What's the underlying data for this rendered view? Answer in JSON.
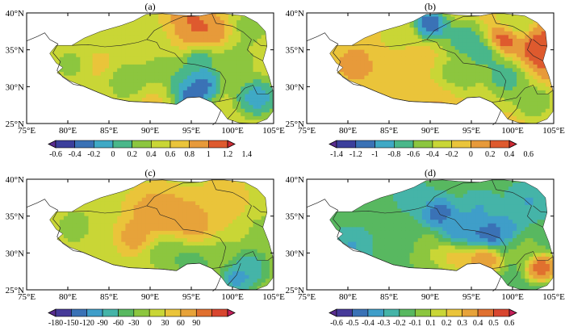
{
  "colors": {
    "ramp_11": [
      "#5a2d90",
      "#3b3f9c",
      "#3a72b6",
      "#3fa9c5",
      "#49b78a",
      "#8cc63f",
      "#c9d636",
      "#eac43a",
      "#e79a3a",
      "#de5a2e",
      "#cf2b34"
    ],
    "ramp_13": [
      "#5a2d90",
      "#463a99",
      "#3a72b6",
      "#3f9ec9",
      "#45b4a8",
      "#58b860",
      "#8cc63f",
      "#c9d636",
      "#eac43a",
      "#e7a33a",
      "#e0702f",
      "#d8462f",
      "#c71f5a"
    ],
    "land_blank": "#ffffff",
    "border": "#222222"
  },
  "panels": [
    {
      "label": "(a)",
      "lat_ticks": [
        "40°N",
        "35°N",
        "30°N",
        "25°N"
      ],
      "lon_ticks": [
        "75°E",
        "80°E",
        "85°E",
        "90°E",
        "95°E",
        "100°E",
        "105°E"
      ],
      "colorbar_ticks": [
        "-0.6",
        "-0.4",
        "-0.2",
        "0",
        "0.2",
        "0.4",
        "0.6",
        "0.8",
        "1",
        "1.2",
        "1.4"
      ],
      "base_level": 6,
      "blobs": [
        [
          94,
          38.5,
          2.8,
          10
        ],
        [
          97.5,
          37.5,
          1.8,
          9
        ],
        [
          91,
          37.2,
          3.0,
          5
        ],
        [
          84,
          33.0,
          1.6,
          7
        ],
        [
          80.5,
          33.0,
          1.4,
          5
        ],
        [
          88,
          31.5,
          2.2,
          4
        ],
        [
          93,
          30.5,
          2.6,
          4
        ],
        [
          94.5,
          28.8,
          1.8,
          0
        ],
        [
          96.5,
          30.5,
          1.6,
          1
        ],
        [
          91,
          28.5,
          2.0,
          8
        ],
        [
          100,
          33.5,
          2.2,
          5
        ],
        [
          102,
          38.0,
          1.8,
          5
        ],
        [
          103,
          28.5,
          1.8,
          2
        ],
        [
          96.0,
          33.5,
          1.6,
          3
        ],
        [
          88,
          34.5,
          1.8,
          7
        ]
      ]
    },
    {
      "label": "(b)",
      "lat_ticks": [
        "40°N",
        "35°N",
        "30°N",
        "25°N"
      ],
      "lon_ticks": [
        "75°E",
        "80°E",
        "85°E",
        "90°E",
        "95°E",
        "100°E",
        "105°E"
      ],
      "colorbar_ticks": [
        "-1.4",
        "-1.2",
        "-1",
        "-0.8",
        "-0.6",
        "-0.4",
        "-0.2",
        "0",
        "0.2",
        "0.4",
        "0.6"
      ],
      "base_level": 7,
      "blobs": [
        [
          104,
          35.0,
          2.6,
          10
        ],
        [
          99,
          36.5,
          1.5,
          10
        ],
        [
          94,
          36.5,
          2.0,
          3
        ],
        [
          96.5,
          34.5,
          1.6,
          3
        ],
        [
          90,
          38.5,
          1.6,
          0
        ],
        [
          86,
          37.0,
          2.0,
          6
        ],
        [
          81,
          33.0,
          1.8,
          8
        ],
        [
          88,
          31.5,
          2.2,
          7
        ],
        [
          93,
          31.0,
          2.2,
          4
        ],
        [
          99,
          31.0,
          2.2,
          3
        ],
        [
          97,
          28.5,
          1.8,
          6
        ],
        [
          102.5,
          28.0,
          1.8,
          4
        ],
        [
          91.5,
          28.6,
          2.0,
          8
        ],
        [
          100.5,
          38.5,
          1.8,
          5
        ]
      ]
    },
    {
      "label": "(c)",
      "lat_ticks": [
        "40°N",
        "35°N",
        "30°N",
        "25°N"
      ],
      "lon_ticks": [
        "75°E",
        "80°E",
        "85°E",
        "90°E",
        "95°E",
        "100°E",
        "105°E"
      ],
      "colorbar_ticks": [
        "-180",
        "-150",
        "-120",
        "-90",
        "-60",
        "-30",
        "0",
        "30",
        "60",
        "90"
      ],
      "base_level": 7,
      "blobs": [
        [
          91,
          35.2,
          2.8,
          10
        ],
        [
          95,
          34.2,
          2.4,
          10
        ],
        [
          87.5,
          32.0,
          1.6,
          10
        ],
        [
          99,
          37.0,
          3.0,
          8
        ],
        [
          81,
          33.5,
          1.8,
          6
        ],
        [
          85,
          31.5,
          2.0,
          7
        ],
        [
          92.5,
          30.5,
          2.0,
          5
        ],
        [
          95.5,
          28.5,
          1.8,
          4
        ],
        [
          102,
          28.0,
          2.0,
          3
        ],
        [
          100.5,
          26.5,
          1.6,
          2
        ],
        [
          98,
          30.0,
          2.0,
          6
        ],
        [
          103.5,
          33.0,
          2.0,
          6
        ]
      ]
    },
    {
      "label": "(d)",
      "lat_ticks": [
        "40°N",
        "35°N",
        "30°N",
        "25°N"
      ],
      "lon_ticks": [
        "75°E",
        "80°E",
        "85°E",
        "90°E",
        "95°E",
        "100°E",
        "105°E"
      ],
      "colorbar_ticks": [
        "-0.6",
        "-0.5",
        "-0.4",
        "-0.3",
        "-0.2",
        "-0.1",
        "0.1",
        "0.2",
        "0.3",
        "0.4",
        "0.5",
        "0.6"
      ],
      "base_level": 5,
      "blobs": [
        [
          91,
          35.5,
          1.6,
          1
        ],
        [
          96,
          36.0,
          1.8,
          3
        ],
        [
          93.5,
          33.0,
          1.8,
          2
        ],
        [
          97,
          32.5,
          1.6,
          1
        ],
        [
          99,
          33.0,
          1.6,
          2
        ],
        [
          102,
          37.0,
          2.0,
          3
        ],
        [
          80.5,
          31.0,
          1.8,
          3
        ],
        [
          86.5,
          31.5,
          2.2,
          5
        ],
        [
          90,
          30.0,
          2.0,
          7
        ],
        [
          93,
          29.5,
          1.6,
          9
        ],
        [
          96.5,
          29.0,
          1.6,
          11
        ],
        [
          103.5,
          28.0,
          1.4,
          12
        ],
        [
          101,
          30.5,
          1.8,
          6
        ],
        [
          88,
          37.5,
          2.2,
          4
        ]
      ]
    }
  ]
}
